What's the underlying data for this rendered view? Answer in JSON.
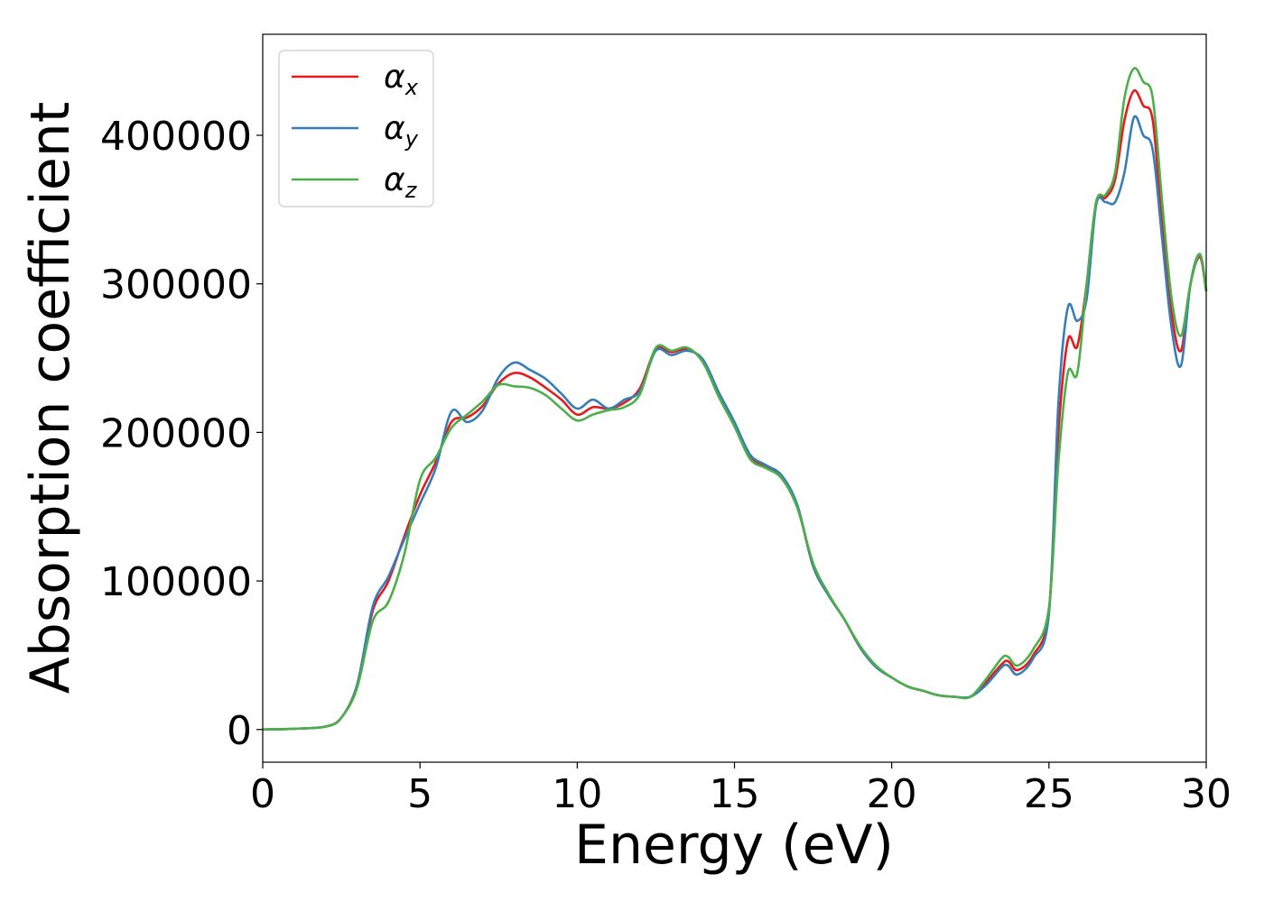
{
  "chart_data": {
    "type": "line",
    "xlabel": "Energy (eV)",
    "ylabel": "Absorption coefficient",
    "xlim": [
      0,
      30
    ],
    "ylim": [
      -22000,
      468000
    ],
    "xticks": [
      0,
      5,
      10,
      15,
      20,
      25,
      30
    ],
    "yticks": [
      0,
      100000,
      200000,
      300000,
      400000
    ],
    "grid": false,
    "legend_position": "top-left",
    "x": [
      0,
      1,
      2,
      2.5,
      3,
      3.5,
      4,
      4.5,
      5,
      5.5,
      6,
      6.5,
      7,
      7.5,
      8,
      8.5,
      9,
      9.5,
      10,
      10.5,
      11,
      11.5,
      12,
      12.5,
      13,
      13.5,
      14,
      14.5,
      15,
      15.5,
      16,
      16.5,
      17,
      17.5,
      18,
      18.5,
      19,
      19.5,
      20,
      20.5,
      21,
      21.5,
      22,
      22.5,
      23,
      23.5,
      23.7,
      24,
      24.5,
      25,
      25.3,
      25.6,
      25.9,
      26.2,
      26.5,
      26.8,
      27.1,
      27.4,
      27.7,
      28,
      28.3,
      28.6,
      28.9,
      29.2,
      29.5,
      29.8,
      30
    ],
    "series": [
      {
        "name": "α",
        "sub": "x",
        "color": "#e41a1c",
        "values": [
          0,
          500,
          2000,
          8000,
          30000,
          80000,
          100000,
          130000,
          158000,
          180000,
          207000,
          210000,
          218000,
          233000,
          240000,
          237000,
          230000,
          222000,
          212000,
          217000,
          216000,
          220000,
          230000,
          256000,
          254000,
          256000,
          248000,
          225000,
          205000,
          183000,
          177000,
          170000,
          150000,
          110000,
          90000,
          74000,
          55000,
          42000,
          35000,
          29000,
          26000,
          23000,
          22000,
          22000,
          32000,
          44000,
          46000,
          40000,
          50000,
          80000,
          200000,
          262000,
          258000,
          300000,
          355000,
          358000,
          370000,
          410000,
          430000,
          420000,
          410000,
          340000,
          280000,
          255000,
          300000,
          318000,
          295000
        ]
      },
      {
        "name": "α",
        "sub": "y",
        "color": "#377eb8",
        "values": [
          0,
          500,
          2000,
          8000,
          30000,
          83000,
          103000,
          128000,
          152000,
          176000,
          214000,
          207000,
          215000,
          237000,
          247000,
          242000,
          236000,
          226000,
          216000,
          222000,
          216000,
          222000,
          228000,
          255000,
          252000,
          255000,
          249000,
          227000,
          207000,
          185000,
          178000,
          171000,
          151000,
          110000,
          90000,
          74000,
          55000,
          42000,
          35000,
          29000,
          26000,
          23000,
          22000,
          22000,
          30000,
          42000,
          43000,
          37000,
          48000,
          78000,
          220000,
          284000,
          275000,
          290000,
          353000,
          355000,
          355000,
          375000,
          412000,
          400000,
          390000,
          330000,
          270000,
          245000,
          300000,
          320000,
          295000
        ]
      },
      {
        "name": "α",
        "sub": "z",
        "color": "#4daf4a",
        "values": [
          0,
          500,
          2000,
          8000,
          28000,
          73000,
          86000,
          118000,
          168000,
          183000,
          203000,
          212000,
          221000,
          232000,
          231000,
          230000,
          225000,
          216000,
          208000,
          212000,
          215000,
          217000,
          226000,
          257000,
          255000,
          257000,
          247000,
          224000,
          204000,
          182000,
          176000,
          169000,
          149000,
          112000,
          91000,
          74000,
          56000,
          43000,
          35000,
          29000,
          26000,
          23000,
          22000,
          22000,
          34000,
          48000,
          49000,
          43000,
          54000,
          82000,
          180000,
          240000,
          240000,
          300000,
          355000,
          360000,
          375000,
          425000,
          445000,
          436000,
          425000,
          355000,
          290000,
          265000,
          300000,
          320000,
          295000
        ]
      }
    ]
  }
}
